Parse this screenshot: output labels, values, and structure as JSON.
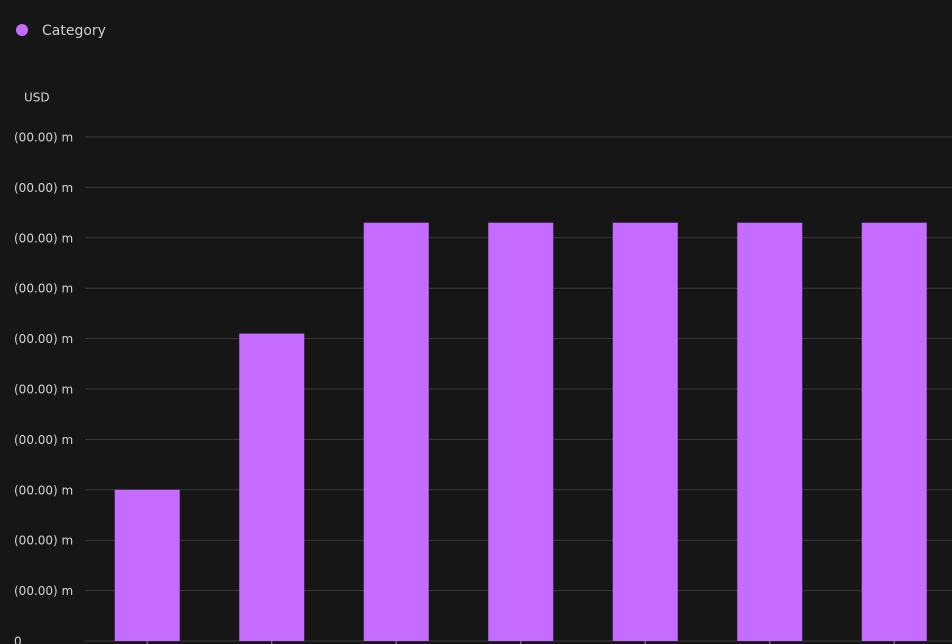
{
  "chart_data": {
    "type": "bar",
    "legend_label": "Category",
    "y_axis_label": "USD",
    "color": "#c66bff",
    "categories": [
      null,
      null,
      null,
      null,
      null,
      null,
      null
    ],
    "values": [
      3,
      6.1,
      8.3,
      8.3,
      8.3,
      8.3,
      8.3
    ],
    "ylim": [
      0,
      10
    ],
    "yticks": [
      0,
      {
        "value": 1,
        "label": "(00.00) m"
      },
      {
        "value": 2,
        "label": "(00.00) m"
      },
      {
        "value": 3,
        "label": "(00.00) m"
      },
      {
        "value": 4,
        "label": "(00.00) m"
      },
      {
        "value": 5,
        "label": "(00.00) m"
      },
      {
        "value": 6,
        "label": "(00.00) m"
      },
      {
        "value": 7,
        "label": "(00.00) m"
      },
      {
        "value": 8,
        "label": "(00.00) m"
      },
      {
        "value": 9,
        "label": "(00.00) m"
      },
      {
        "value": 10,
        "label": "(00.00) m"
      }
    ],
    "grid": true
  }
}
